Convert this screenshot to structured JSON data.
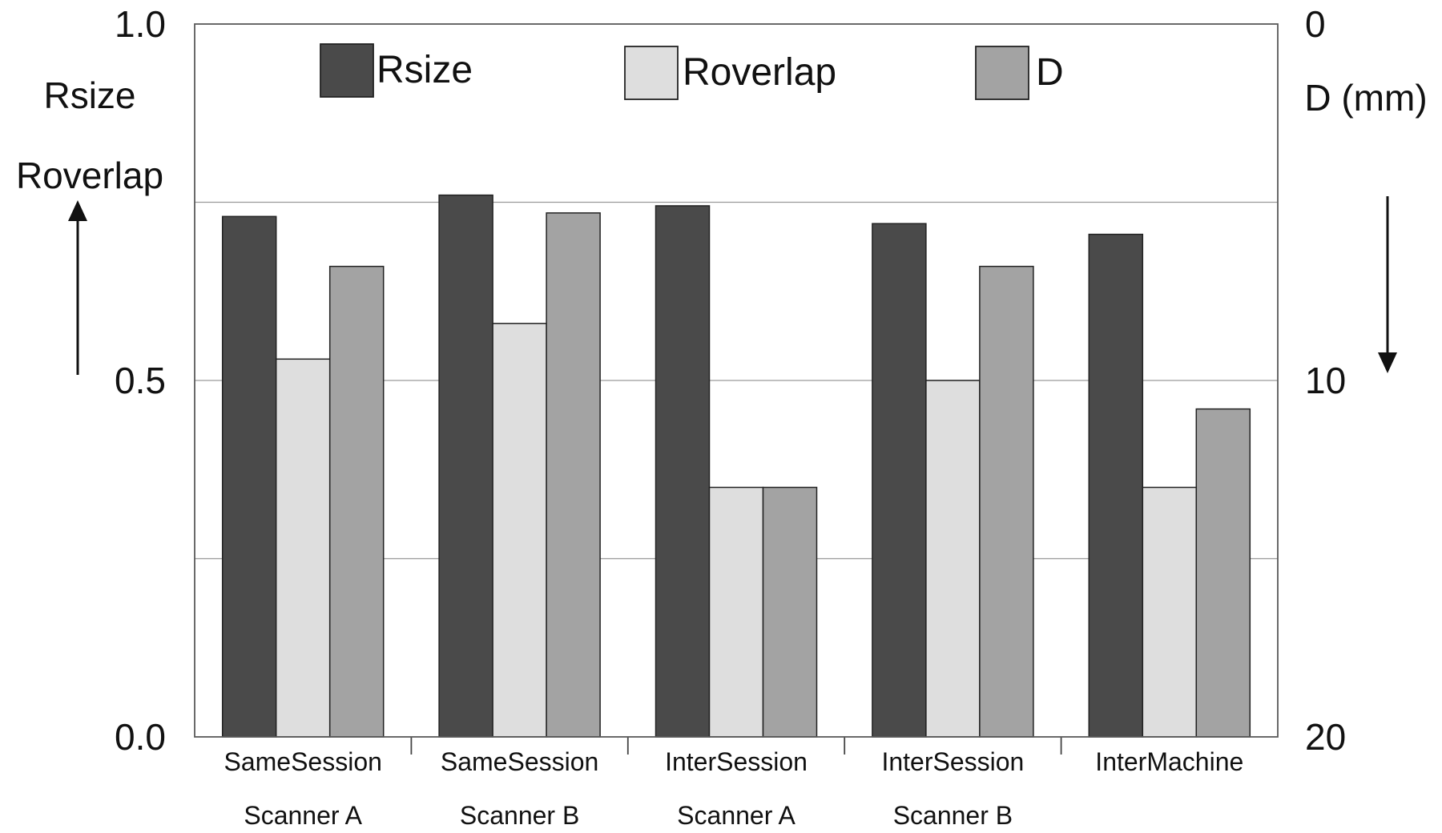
{
  "chart_data": {
    "type": "bar",
    "categories": [
      [
        "SameSession",
        "Scanner A"
      ],
      [
        "SameSession",
        "Scanner B"
      ],
      [
        "InterSession",
        "Scanner A"
      ],
      [
        "InterSession",
        "Scanner B"
      ],
      [
        "InterMachine",
        ""
      ]
    ],
    "series": [
      {
        "name": "Rsize",
        "axis": "left",
        "color": "#4a4a4a",
        "values": [
          0.73,
          0.76,
          0.745,
          0.72,
          0.705
        ]
      },
      {
        "name": "Roverlap",
        "axis": "left",
        "color": "#dedede",
        "values": [
          0.53,
          0.58,
          0.35,
          0.5,
          0.35
        ]
      },
      {
        "name": "D",
        "axis": "right",
        "color": "#a3a3a3",
        "values": [
          6.8,
          5.3,
          13.0,
          6.8,
          10.8
        ]
      }
    ],
    "left_axis": {
      "label_lines": [
        "Rsize",
        "Roverlap"
      ],
      "range": [
        0.0,
        1.0
      ],
      "ticks": [
        "0.0",
        "0.5",
        "1.0"
      ],
      "arrow": "up"
    },
    "right_axis": {
      "label": "D (mm)",
      "range": [
        0,
        20
      ],
      "inverted": true,
      "ticks": [
        "0",
        "10",
        "20"
      ],
      "arrow": "down"
    },
    "gridlines_y": [
      0.25,
      0.5,
      0.75
    ],
    "legend_position": "top",
    "grid": true
  }
}
